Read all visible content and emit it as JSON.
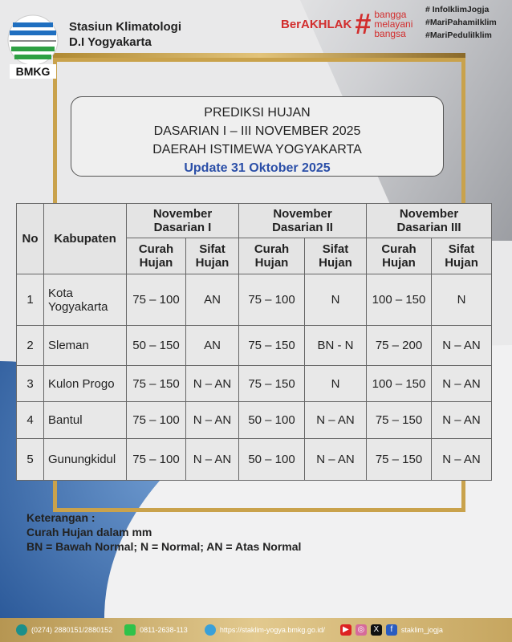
{
  "header": {
    "org_line1": "Stasiun Klimatologi",
    "org_line2": "D.I Yogyakarta",
    "logo_text": "BMKG",
    "berakhlak": "BerAKHLAK",
    "bangga": [
      "bangga",
      "melayani",
      "bangsa"
    ],
    "hashtags": [
      "# InfoIklimJogja",
      "#MariPahamiIklim",
      "#MariPeduliIklim"
    ]
  },
  "title": {
    "line1": "PREDIKSI HUJAN",
    "line2": "DASARIAN I – III NOVEMBER 2025",
    "line3": "DAERAH ISTIMEWA YOGYAKARTA",
    "update": "Update 31 Oktober 2025"
  },
  "table": {
    "col_no": "No",
    "col_kab": "Kabupaten",
    "periods": [
      {
        "l1": "November",
        "l2": "Dasarian I"
      },
      {
        "l1": "November",
        "l2": "Dasarian II"
      },
      {
        "l1": "November",
        "l2": "Dasarian III"
      }
    ],
    "sub": {
      "curah1": "Curah",
      "curah2": "Hujan",
      "sifat1": "Sifat",
      "sifat2": "Hujan"
    },
    "rows": [
      {
        "no": "1",
        "kab": "Kota Yogyakarta",
        "v": [
          "75 – 100",
          "AN",
          "75 – 100",
          "N",
          "100 – 150",
          "N"
        ]
      },
      {
        "no": "2",
        "kab": "Sleman",
        "v": [
          "50 – 150",
          "AN",
          "75 – 150",
          "BN - N",
          "75 – 200",
          "N – AN"
        ]
      },
      {
        "no": "3",
        "kab": "Kulon Progo",
        "v": [
          "75 – 150",
          "N – AN",
          "75 – 150",
          "N",
          "100 – 150",
          "N – AN"
        ]
      },
      {
        "no": "4",
        "kab": "Bantul",
        "v": [
          "75 – 100",
          "N – AN",
          "50 – 100",
          "N – AN",
          "75 – 150",
          "N – AN"
        ]
      },
      {
        "no": "5",
        "kab": "Gunungkidul",
        "v": [
          "75 – 100",
          "N – AN",
          "50 – 100",
          "N – AN",
          "75 – 150",
          "N – AN"
        ]
      }
    ]
  },
  "keterangan": {
    "title": "Keterangan :",
    "l1": "Curah Hujan dalam mm",
    "l2": "BN = Bawah Normal; N = Normal; AN = Atas Normal"
  },
  "footer": {
    "phone": "(0274) 2880151/2880152",
    "whatsapp": "0811-2638-113",
    "website": "https://staklim-yogya.bmkg.go.id/",
    "social": "staklim_jogja"
  }
}
